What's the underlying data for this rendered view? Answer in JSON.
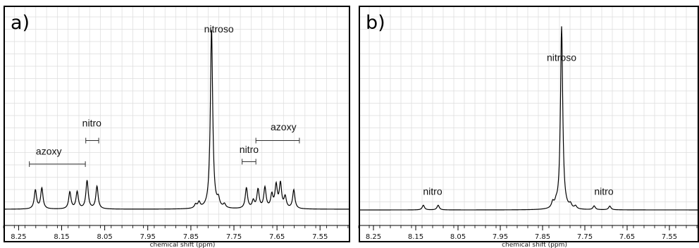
{
  "chart_data": [
    {
      "type": "line",
      "panel": "a)",
      "xlabel": "chemical shift (ppm)",
      "ylabel": "",
      "x_reversed": true,
      "xlim": [
        8.285,
        7.48
      ],
      "ticks": [
        "8.25",
        "8.15",
        "8.05",
        "7.95",
        "7.85",
        "7.75",
        "7.65",
        "7.55"
      ],
      "grid": true,
      "series": [
        {
          "baseline": 0,
          "peaks": [
            {
              "x": 8.211,
              "y": 0.1
            },
            {
              "x": 8.196,
              "y": 0.11
            },
            {
              "x": 8.131,
              "y": 0.09
            },
            {
              "x": 8.114,
              "y": 0.09
            },
            {
              "x": 8.091,
              "y": 0.15
            },
            {
              "x": 8.068,
              "y": 0.12
            },
            {
              "x": 7.839,
              "y": 0.02
            },
            {
              "x": 7.831,
              "y": 0.03
            },
            {
              "x": 7.802,
              "y": 0.96
            },
            {
              "x": 7.786,
              "y": 0.04
            },
            {
              "x": 7.772,
              "y": 0.02
            },
            {
              "x": 7.721,
              "y": 0.11
            },
            {
              "x": 7.705,
              "y": 0.04
            },
            {
              "x": 7.694,
              "y": 0.1
            },
            {
              "x": 7.678,
              "y": 0.11
            },
            {
              "x": 7.662,
              "y": 0.07
            },
            {
              "x": 7.652,
              "y": 0.12
            },
            {
              "x": 7.642,
              "y": 0.13
            },
            {
              "x": 7.631,
              "y": 0.06
            },
            {
              "x": 7.611,
              "y": 0.1
            }
          ]
        }
      ],
      "annotations": [
        {
          "text": "nitroso",
          "x": 7.785,
          "y": 0.94
        },
        {
          "text": "nitro",
          "x": 8.08,
          "y": 0.44
        },
        {
          "text": "azoxy",
          "x": 8.18,
          "y": 0.29
        },
        {
          "text": "nitro",
          "x": 7.715,
          "y": 0.3
        },
        {
          "text": "azoxy",
          "x": 7.635,
          "y": 0.42
        }
      ],
      "brackets": [
        {
          "x1": 8.225,
          "x2": 8.095,
          "y": 0.24
        },
        {
          "x1": 8.094,
          "x2": 8.064,
          "y": 0.365
        },
        {
          "x1": 7.731,
          "x2": 7.699,
          "y": 0.253
        },
        {
          "x1": 7.699,
          "x2": 7.598,
          "y": 0.365
        }
      ]
    },
    {
      "type": "line",
      "panel": "b)",
      "xlabel": "chemical shift (ppm)",
      "ylabel": "",
      "x_reversed": true,
      "xlim": [
        8.285,
        7.48
      ],
      "ticks": [
        "8.25",
        "8.15",
        "8.05",
        "7.95",
        "7.85",
        "7.75",
        "7.65",
        "7.55"
      ],
      "grid": true,
      "series": [
        {
          "baseline": 0,
          "peaks": [
            {
              "x": 8.132,
              "y": 0.025
            },
            {
              "x": 8.097,
              "y": 0.025
            },
            {
              "x": 7.826,
              "y": 0.03
            },
            {
              "x": 7.818,
              "y": 0.02
            },
            {
              "x": 7.805,
              "y": 0.97
            },
            {
              "x": 7.784,
              "y": 0.02
            },
            {
              "x": 7.772,
              "y": 0.015
            },
            {
              "x": 7.728,
              "y": 0.02
            },
            {
              "x": 7.691,
              "y": 0.02
            }
          ]
        }
      ],
      "annotations": [
        {
          "text": "nitroso",
          "x": 7.805,
          "y": 0.79
        },
        {
          "text": "nitro",
          "x": 8.11,
          "y": 0.08
        },
        {
          "text": "nitro",
          "x": 7.705,
          "y": 0.08
        }
      ],
      "brackets": []
    }
  ]
}
